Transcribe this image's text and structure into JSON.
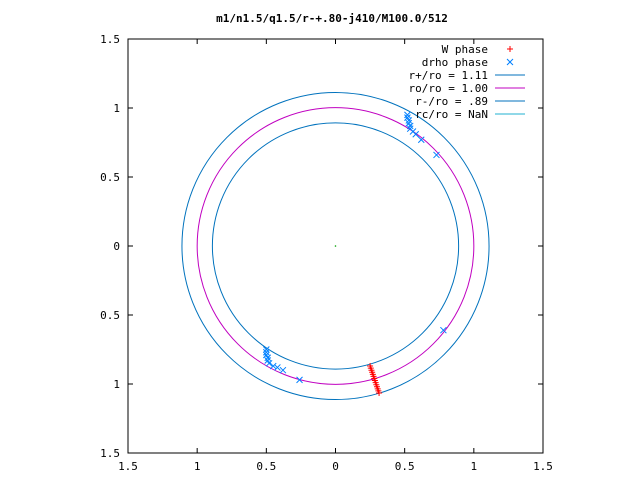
{
  "chart_data": {
    "type": "scatter",
    "title": "m1/n1.5/q1.5/r-+.80-j410/M100.0/512",
    "xlim": [
      -1.5,
      1.5
    ],
    "ylim": [
      -1.5,
      1.5
    ],
    "x_ticks": [
      -1.5,
      -1,
      -0.5,
      0,
      0.5,
      1,
      1.5
    ],
    "y_ticks": [
      1.5,
      1,
      0.5,
      0,
      -0.5,
      -1,
      -1.5
    ],
    "x_tick_labels": [
      "1.5",
      "1",
      "0.5",
      "0",
      "0.5",
      "1",
      "1.5"
    ],
    "y_tick_labels": [
      "1.5",
      "1",
      "0.5",
      "0",
      "0.5",
      "1",
      "1.5"
    ],
    "grid": false,
    "legend_position": "top-right",
    "series": [
      {
        "name": "W phase",
        "kind": "points",
        "marker": "+",
        "color": "#ff0000",
        "points": [
          [
            0.25,
            -0.87
          ],
          [
            0.255,
            -0.885
          ],
          [
            0.26,
            -0.9
          ],
          [
            0.265,
            -0.915
          ],
          [
            0.27,
            -0.93
          ],
          [
            0.275,
            -0.945
          ],
          [
            0.28,
            -0.96
          ],
          [
            0.285,
            -0.975
          ],
          [
            0.29,
            -0.99
          ],
          [
            0.295,
            -1.005
          ],
          [
            0.3,
            -1.02
          ],
          [
            0.305,
            -1.035
          ],
          [
            0.31,
            -1.05
          ],
          [
            0.315,
            -1.065
          ]
        ]
      },
      {
        "name": "drho phase",
        "kind": "points",
        "marker": "x",
        "color": "#0080ff",
        "points": [
          [
            0.52,
            0.95
          ],
          [
            0.52,
            0.93
          ],
          [
            0.53,
            0.91
          ],
          [
            0.53,
            0.89
          ],
          [
            0.54,
            0.87
          ],
          [
            0.54,
            0.85
          ],
          [
            0.56,
            0.83
          ],
          [
            0.58,
            0.81
          ],
          [
            0.62,
            0.77
          ],
          [
            0.73,
            0.66
          ],
          [
            -0.5,
            -0.75
          ],
          [
            -0.5,
            -0.77
          ],
          [
            -0.5,
            -0.79
          ],
          [
            -0.49,
            -0.81
          ],
          [
            -0.49,
            -0.83
          ],
          [
            -0.48,
            -0.85
          ],
          [
            -0.45,
            -0.87
          ],
          [
            -0.42,
            -0.88
          ],
          [
            -0.38,
            -0.9
          ],
          [
            -0.26,
            -0.97
          ],
          [
            0.78,
            -0.61
          ]
        ]
      },
      {
        "name": "r+/ro = 1.11",
        "kind": "circle",
        "radius": 1.11,
        "color": "#0072bd"
      },
      {
        "name": "ro/ro = 1.00",
        "kind": "circle",
        "radius": 1.0,
        "color": "#c000c0"
      },
      {
        "name": "r-/ro =  .89",
        "kind": "circle",
        "radius": 0.89,
        "color": "#0072bd"
      },
      {
        "name": "rc/ro = NaN",
        "kind": "circle",
        "radius": null,
        "color": "#20b0d0"
      }
    ]
  }
}
